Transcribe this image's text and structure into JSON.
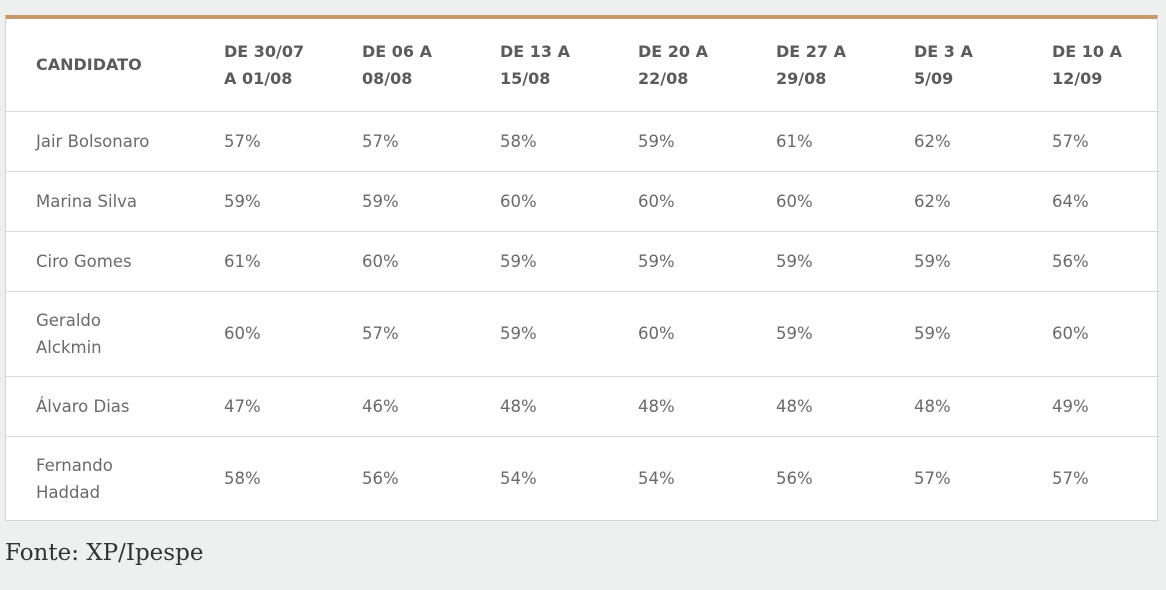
{
  "chart_data": {
    "type": "table",
    "columns": [
      "CANDIDATO",
      "DE 30/07\nA 01/08",
      "DE 06 A\n08/08",
      "DE 13 A\n15/08",
      "DE 20 A\n22/08",
      "DE 27 A\n29/08",
      "DE 3 A\n5/09",
      "DE 10 A\n12/09"
    ],
    "rows": [
      {
        "name": "Jair Bolsonaro",
        "values": [
          "57%",
          "57%",
          "58%",
          "59%",
          "61%",
          "62%",
          "57%"
        ]
      },
      {
        "name": "Marina Silva",
        "values": [
          "59%",
          "59%",
          "60%",
          "60%",
          "60%",
          "62%",
          "64%"
        ]
      },
      {
        "name": "Ciro Gomes",
        "values": [
          "61%",
          "60%",
          "59%",
          "59%",
          "59%",
          "59%",
          "56%"
        ]
      },
      {
        "name": "Geraldo Alckmin",
        "values": [
          "60%",
          "57%",
          "59%",
          "60%",
          "59%",
          "59%",
          "60%"
        ]
      },
      {
        "name": "Álvaro Dias",
        "values": [
          "47%",
          "46%",
          "48%",
          "48%",
          "48%",
          "48%",
          "49%"
        ]
      },
      {
        "name": "Fernando Haddad",
        "values": [
          "58%",
          "56%",
          "54%",
          "54%",
          "56%",
          "57%",
          "57%"
        ]
      }
    ]
  },
  "source": "Fonte: XP/Ipespe",
  "colors": {
    "accent_border": "#c9986a",
    "background": "#eef0ef",
    "header_text": "#5b5b5b",
    "cell_text": "#6a6a6a"
  }
}
